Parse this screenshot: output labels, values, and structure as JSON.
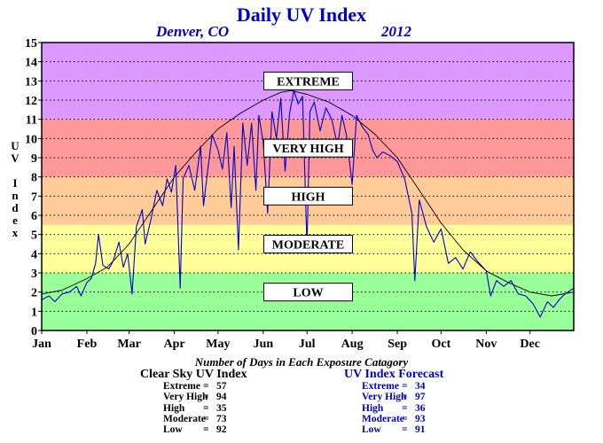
{
  "title": "Daily UV Index",
  "location": "Denver, CO",
  "year": "2012",
  "ylabel": "UV Index",
  "counts_heading": "Number of Days in Each Exposure Catagory",
  "clear_sky": {
    "title": "Clear Sky UV Index",
    "rows": [
      {
        "category": "Extreme",
        "count": "57"
      },
      {
        "category": "Very High",
        "count": "94"
      },
      {
        "category": "High",
        "count": "35"
      },
      {
        "category": "Moderate",
        "count": "73"
      },
      {
        "category": "Low",
        "count": "92"
      }
    ]
  },
  "forecast": {
    "title": "UV Index Forecast",
    "rows": [
      {
        "category": "Extreme",
        "count": "34"
      },
      {
        "category": "Very High",
        "count": "97"
      },
      {
        "category": "High",
        "count": "36"
      },
      {
        "category": "Moderate",
        "count": "93"
      },
      {
        "category": "Low",
        "count": "91"
      }
    ]
  },
  "colors": {
    "low": "#99ff99",
    "moderate": "#ffff99",
    "high": "#ffcc99",
    "very_high": "#ff9999",
    "extreme": "#dd99ff",
    "clear_sky_line": "#000000",
    "forecast_line": "#0000cc"
  },
  "chart_data": {
    "type": "line",
    "x_unit": "day of year",
    "xlim": [
      1,
      366
    ],
    "ylim": [
      0,
      15
    ],
    "y_ticks": [
      0,
      1,
      2,
      3,
      4,
      5,
      6,
      7,
      8,
      9,
      10,
      11,
      12,
      13,
      14,
      15
    ],
    "x_tick_labels": [
      {
        "label": "Jan",
        "day": 1
      },
      {
        "label": "Feb",
        "day": 32
      },
      {
        "label": "Mar",
        "day": 61
      },
      {
        "label": "Apr",
        "day": 92
      },
      {
        "label": "May",
        "day": 122
      },
      {
        "label": "Jun",
        "day": 153
      },
      {
        "label": "Jul",
        "day": 183
      },
      {
        "label": "Aug",
        "day": 214
      },
      {
        "label": "Sep",
        "day": 245
      },
      {
        "label": "Oct",
        "day": 275
      },
      {
        "label": "Nov",
        "day": 306
      },
      {
        "label": "Dec",
        "day": 336
      }
    ],
    "grid": "horizontal dotted",
    "bands": [
      {
        "label": "LOW",
        "from": 0,
        "to": 3,
        "label_y": 2
      },
      {
        "label": "MODERATE",
        "from": 3,
        "to": 5.5,
        "label_y": 4.5
      },
      {
        "label": "HIGH",
        "from": 5.5,
        "to": 8,
        "label_y": 7
      },
      {
        "label": "VERY HIGH",
        "from": 8,
        "to": 11,
        "label_y": 9.5
      },
      {
        "label": "EXTREME",
        "from": 11,
        "to": 15,
        "label_y": 13
      }
    ],
    "series": [
      {
        "key": "clear_sky",
        "points": [
          [
            1,
            1.9
          ],
          [
            15,
            2.1
          ],
          [
            32,
            2.7
          ],
          [
            46,
            3.3
          ],
          [
            61,
            4.5
          ],
          [
            76,
            6.2
          ],
          [
            92,
            8.0
          ],
          [
            107,
            9.3
          ],
          [
            122,
            10.5
          ],
          [
            137,
            11.3
          ],
          [
            153,
            12.0
          ],
          [
            165,
            12.4
          ],
          [
            172,
            12.5
          ],
          [
            183,
            12.3
          ],
          [
            198,
            11.9
          ],
          [
            214,
            11.2
          ],
          [
            230,
            10.2
          ],
          [
            245,
            9.0
          ],
          [
            260,
            7.3
          ],
          [
            275,
            5.6
          ],
          [
            290,
            4.2
          ],
          [
            306,
            3.1
          ],
          [
            321,
            2.5
          ],
          [
            336,
            2.0
          ],
          [
            351,
            1.8
          ],
          [
            366,
            2.0
          ]
        ]
      },
      {
        "key": "forecast",
        "points": [
          [
            1,
            1.6
          ],
          [
            6,
            1.8
          ],
          [
            10,
            1.5
          ],
          [
            15,
            1.9
          ],
          [
            20,
            2.0
          ],
          [
            25,
            2.3
          ],
          [
            28,
            1.8
          ],
          [
            32,
            2.5
          ],
          [
            35,
            2.7
          ],
          [
            38,
            3.5
          ],
          [
            40,
            5.0
          ],
          [
            43,
            3.4
          ],
          [
            47,
            3.2
          ],
          [
            50,
            3.6
          ],
          [
            54,
            4.6
          ],
          [
            57,
            3.3
          ],
          [
            60,
            4.0
          ],
          [
            63,
            1.9
          ],
          [
            66,
            5.4
          ],
          [
            70,
            6.3
          ],
          [
            72,
            4.5
          ],
          [
            76,
            5.8
          ],
          [
            80,
            7.3
          ],
          [
            84,
            6.5
          ],
          [
            87,
            7.9
          ],
          [
            90,
            7.2
          ],
          [
            93,
            8.6
          ],
          [
            96,
            2.2
          ],
          [
            98,
            7.9
          ],
          [
            102,
            8.6
          ],
          [
            106,
            7.3
          ],
          [
            110,
            9.6
          ],
          [
            112,
            6.5
          ],
          [
            115,
            8.4
          ],
          [
            118,
            10.2
          ],
          [
            122,
            9.4
          ],
          [
            125,
            8.4
          ],
          [
            128,
            10.3
          ],
          [
            131,
            6.4
          ],
          [
            133,
            9.6
          ],
          [
            136,
            4.2
          ],
          [
            139,
            10.8
          ],
          [
            142,
            8.6
          ],
          [
            145,
            10.8
          ],
          [
            148,
            7.3
          ],
          [
            150,
            11.2
          ],
          [
            153,
            9.8
          ],
          [
            156,
            6.1
          ],
          [
            159,
            11.4
          ],
          [
            162,
            10.0
          ],
          [
            165,
            12.1
          ],
          [
            168,
            8.3
          ],
          [
            171,
            11.3
          ],
          [
            174,
            12.5
          ],
          [
            177,
            11.8
          ],
          [
            180,
            12.2
          ],
          [
            183,
            4.3
          ],
          [
            185,
            11.4
          ],
          [
            188,
            11.9
          ],
          [
            192,
            10.4
          ],
          [
            196,
            11.6
          ],
          [
            200,
            11.0
          ],
          [
            204,
            9.6
          ],
          [
            207,
            11.2
          ],
          [
            210,
            10.2
          ],
          [
            214,
            7.6
          ],
          [
            217,
            11.2
          ],
          [
            221,
            10.6
          ],
          [
            225,
            10.2
          ],
          [
            228,
            9.4
          ],
          [
            231,
            9.0
          ],
          [
            235,
            9.3
          ],
          [
            240,
            9.1
          ],
          [
            245,
            8.8
          ],
          [
            250,
            7.9
          ],
          [
            255,
            6.1
          ],
          [
            257,
            2.6
          ],
          [
            260,
            6.8
          ],
          [
            265,
            5.4
          ],
          [
            270,
            4.6
          ],
          [
            275,
            5.3
          ],
          [
            280,
            3.5
          ],
          [
            285,
            3.8
          ],
          [
            290,
            3.2
          ],
          [
            295,
            4.1
          ],
          [
            300,
            3.6
          ],
          [
            306,
            3.1
          ],
          [
            309,
            1.8
          ],
          [
            313,
            2.6
          ],
          [
            318,
            2.3
          ],
          [
            323,
            2.6
          ],
          [
            328,
            1.9
          ],
          [
            333,
            1.8
          ],
          [
            338,
            1.4
          ],
          [
            343,
            0.7
          ],
          [
            348,
            1.5
          ],
          [
            352,
            1.2
          ],
          [
            356,
            1.6
          ],
          [
            360,
            1.9
          ],
          [
            366,
            2.2
          ]
        ]
      }
    ]
  }
}
